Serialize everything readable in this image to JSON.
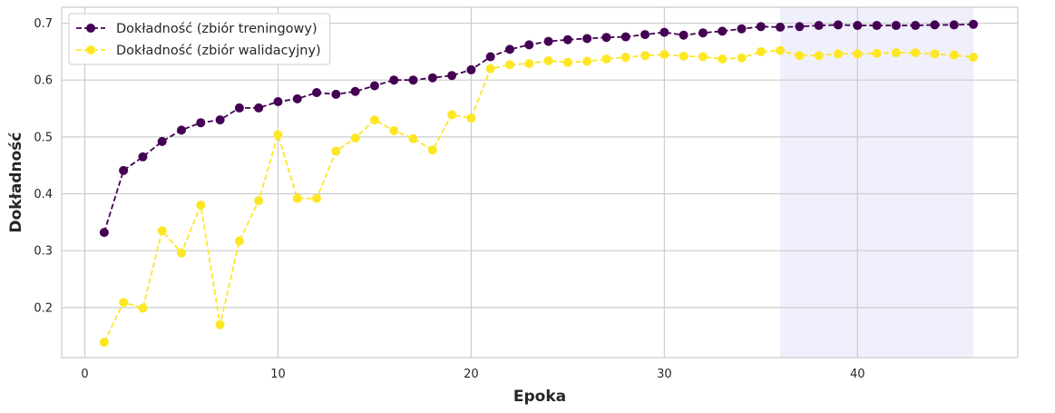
{
  "chart_data": {
    "type": "line",
    "title": "",
    "xlabel": "Epoka",
    "ylabel": "Dokładność",
    "xlim": [
      -1.2,
      48.3
    ],
    "ylim": [
      0.112,
      0.728
    ],
    "xticks": [
      0,
      10,
      20,
      30,
      40
    ],
    "yticks": [
      0.2,
      0.3,
      0.4,
      0.5,
      0.6,
      0.7
    ],
    "grid": true,
    "legend_position": "top-left",
    "highlight_span": {
      "x_start": 36,
      "x_end": 46,
      "color": "#e6e6fa"
    },
    "x": [
      1,
      2,
      3,
      4,
      5,
      6,
      7,
      8,
      9,
      10,
      11,
      12,
      13,
      14,
      15,
      16,
      17,
      18,
      19,
      20,
      21,
      22,
      23,
      24,
      25,
      26,
      27,
      28,
      29,
      30,
      31,
      32,
      33,
      34,
      35,
      36,
      37,
      38,
      39,
      40,
      41,
      42,
      43,
      44,
      45,
      46
    ],
    "series": [
      {
        "name": "Dokładność (zbiór treningowy)",
        "color": "#440154",
        "values": [
          0.332,
          0.441,
          0.465,
          0.492,
          0.512,
          0.525,
          0.53,
          0.551,
          0.551,
          0.562,
          0.567,
          0.578,
          0.575,
          0.58,
          0.59,
          0.6,
          0.6,
          0.604,
          0.608,
          0.618,
          0.641,
          0.654,
          0.662,
          0.668,
          0.671,
          0.673,
          0.675,
          0.676,
          0.68,
          0.684,
          0.679,
          0.683,
          0.686,
          0.69,
          0.694,
          0.693,
          0.694,
          0.696,
          0.697,
          0.696,
          0.696,
          0.696,
          0.696,
          0.697,
          0.697,
          0.698
        ]
      },
      {
        "name": "Dokładność (zbiór walidacyjny)",
        "color": "#fde725",
        "values": [
          0.139,
          0.209,
          0.199,
          0.335,
          0.296,
          0.38,
          0.17,
          0.317,
          0.388,
          0.504,
          0.392,
          0.392,
          0.475,
          0.498,
          0.53,
          0.511,
          0.497,
          0.477,
          0.539,
          0.533,
          0.62,
          0.627,
          0.629,
          0.634,
          0.631,
          0.633,
          0.637,
          0.64,
          0.643,
          0.645,
          0.642,
          0.641,
          0.637,
          0.639,
          0.65,
          0.652,
          0.643,
          0.643,
          0.646,
          0.646,
          0.647,
          0.648,
          0.648,
          0.646,
          0.644,
          0.64
        ]
      }
    ]
  }
}
